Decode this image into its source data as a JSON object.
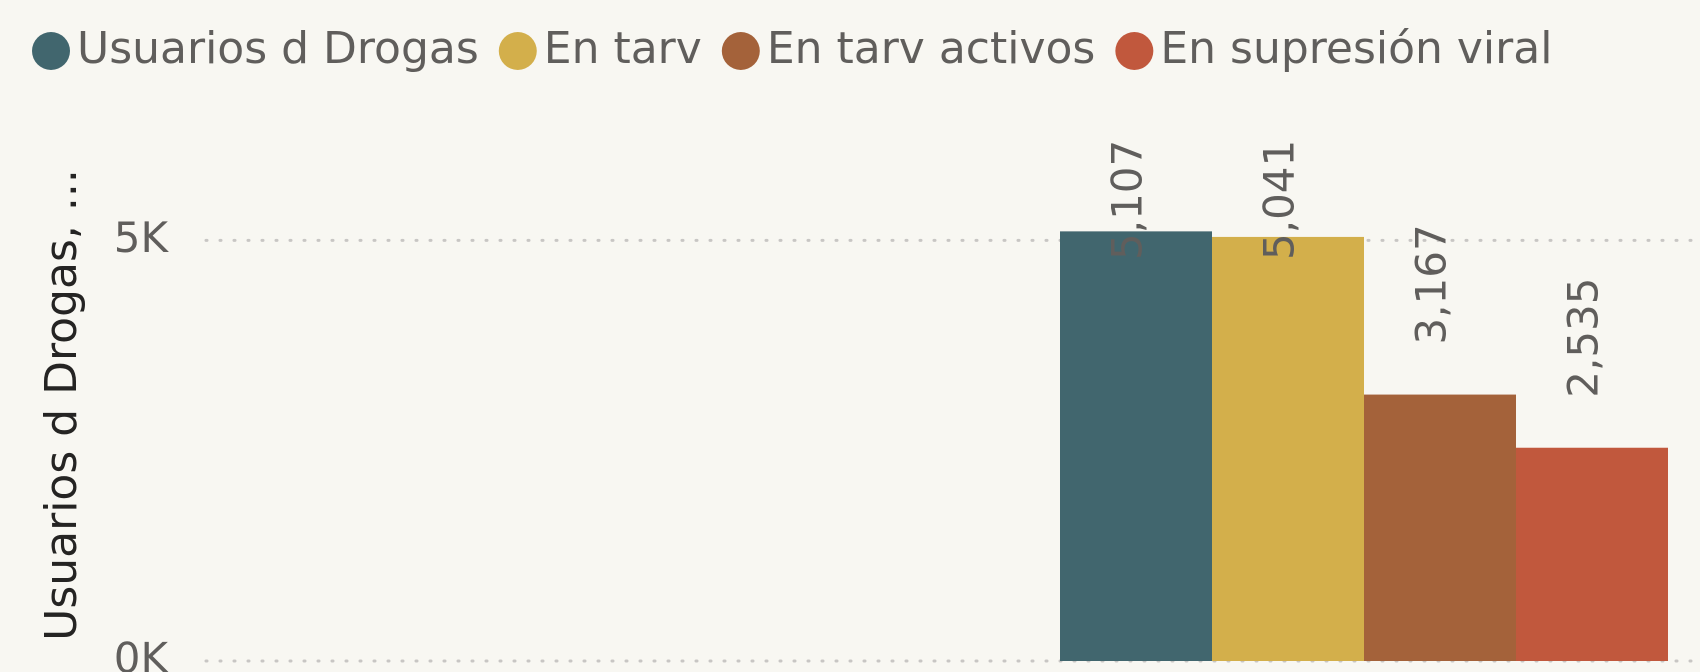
{
  "chart_data": {
    "type": "bar",
    "y_axis_label": "Usuarios d Drogas, ...",
    "categories": [
      null
    ],
    "series": [
      {
        "name": "Usuarios d Drogas",
        "color": "#41666e",
        "values": [
          5107
        ],
        "value_labels": [
          "5,107"
        ]
      },
      {
        "name": "En tarv",
        "color": "#d3af4b",
        "values": [
          5041
        ],
        "value_labels": [
          "5,041"
        ]
      },
      {
        "name": "En tarv activos",
        "color": "#a4623a",
        "values": [
          3167
        ],
        "value_labels": [
          "3,167"
        ]
      },
      {
        "name": "En supresión viral",
        "color": "#c1583d",
        "values": [
          2535
        ],
        "value_labels": [
          "2,535"
        ]
      }
    ],
    "ylim": [
      0,
      6300
    ],
    "yticks": [
      {
        "value": 0,
        "label": "0K"
      },
      {
        "value": 5000,
        "label": "5K"
      }
    ],
    "grid": true,
    "legend": "top"
  }
}
